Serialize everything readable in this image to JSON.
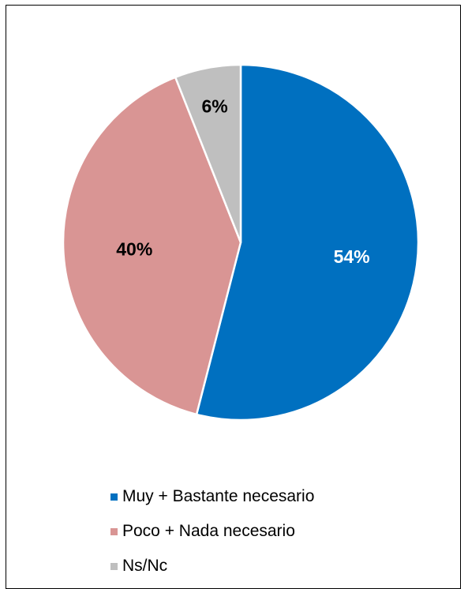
{
  "chart_data": {
    "type": "pie",
    "title": "",
    "start_angle_deg": 0,
    "direction": "clockwise",
    "legend_position": "bottom",
    "slices": [
      {
        "label": "Muy + Bastante necesario",
        "value": 54,
        "value_label": "54%",
        "color": "#0070C0",
        "label_color": "#FFFFFF"
      },
      {
        "label": "Poco + Nada necesario",
        "value": 40,
        "value_label": "40%",
        "color": "#D99594",
        "label_color": "#000000"
      },
      {
        "label": "Ns/Nc",
        "value": 6,
        "value_label": "6%",
        "color": "#BFBFBF",
        "label_color": "#000000"
      }
    ]
  },
  "legend": {
    "items": [
      {
        "label": "Muy + Bastante necesario",
        "color": "#0070C0"
      },
      {
        "label": "Poco + Nada necesario",
        "color": "#D99594"
      },
      {
        "label": "Ns/Nc",
        "color": "#BFBFBF"
      }
    ]
  }
}
